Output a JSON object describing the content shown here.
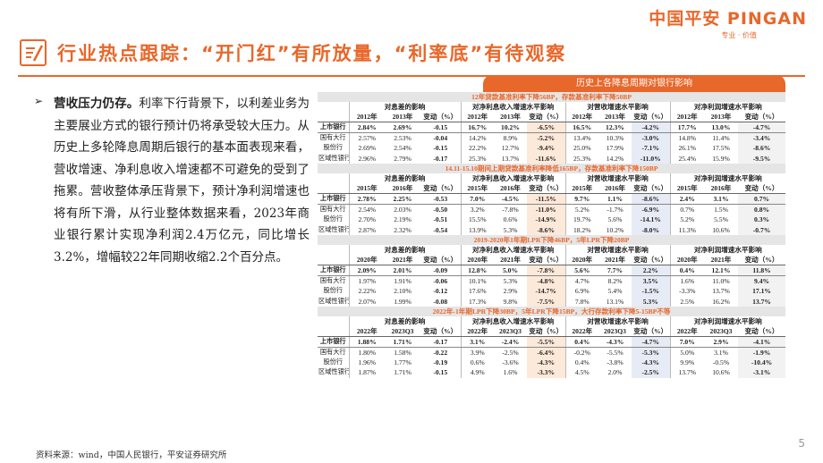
{
  "logo": {
    "main": "中国平安 PINGAN",
    "sub": "专业 · 价值"
  },
  "title": "行业热点跟踪：“开门红”有所放量，“利率底”有待观察",
  "body": {
    "bold_lead": "营收压力仍存。",
    "text": "利率下行背景下，以利差业务为主要展业方式的银行预计仍将承受较大压力。从历史上多轮降息周期后银行的基本面表现来看，营收增速、净利息收入增速都不可避免的受到了拖累。营收整体承压背景下，预计净利润增速也将有所下滑，从行业整体数据来看，2023年商业银行累计实现净利润2.4万亿元，同比增长3.2%，增幅较22年同期收缩2.2个百分点。"
  },
  "source": "资料来源：wind，中国人民银行，平安证券研究所",
  "page_number": "5",
  "table": {
    "title": "历史上各降息周期对银行影响",
    "group_headers": [
      "对息差的影响",
      "对净利息收入增速水平影响",
      "对营收增速水平影响",
      "对净利润增速水平影响"
    ],
    "sections": [
      {
        "period": "12年贷款基准利率下降56BP，存款基准利率下降50BP",
        "years": [
          "2012年",
          "2013年",
          "变动（%）",
          "2012年",
          "2013年",
          "变动（%）",
          "2012年",
          "2013年",
          "变动（%）",
          "2012年",
          "2013年",
          "变动（%）"
        ],
        "rows": [
          {
            "label": "上市银行",
            "cells": [
              "2.84%",
              "2.69%",
              "-0.15",
              "16.7%",
              "10.2%",
              "-6.5%",
              "16.5%",
              "12.3%",
              "-4.2%",
              "17.7%",
              "13.0%",
              "-4.7%"
            ]
          },
          {
            "label": "国有大行",
            "cells": [
              "2.57%",
              "2.53%",
              "-0.04",
              "14.2%",
              "8.9%",
              "-5.2%",
              "13.4%",
              "10.3%",
              "-3.0%",
              "14.8%",
              "11.4%",
              "-3.4%"
            ]
          },
          {
            "label": "股份行",
            "cells": [
              "2.69%",
              "2.54%",
              "-0.15",
              "22.2%",
              "12.7%",
              "-9.4%",
              "25.0%",
              "17.9%",
              "-7.1%",
              "26.1%",
              "17.5%",
              "-8.6%"
            ]
          },
          {
            "label": "区域性银行",
            "cells": [
              "2.96%",
              "2.79%",
              "-0.17",
              "25.3%",
              "13.7%",
              "-11.6%",
              "25.3%",
              "14.2%",
              "-11.0%",
              "25.4%",
              "15.9%",
              "-9.5%"
            ]
          }
        ]
      },
      {
        "period": "14.11-15.10期间上期贷款基准利率降低165BP，存款基准利率下降150BP",
        "years": [
          "2015年",
          "2016年",
          "变动（%）",
          "2015年",
          "2016年",
          "变动（%）",
          "2015年",
          "2016年",
          "变动（%）",
          "2015年",
          "2016年",
          "变动（%）"
        ],
        "rows": [
          {
            "label": "上市银行",
            "cells": [
              "2.78%",
              "2.25%",
              "-0.53",
              "7.0%",
              "-4.5%",
              "-11.5%",
              "9.7%",
              "1.1%",
              "-8.6%",
              "2.4%",
              "3.1%",
              "0.7%"
            ]
          },
          {
            "label": "国有大行",
            "cells": [
              "2.54%",
              "2.03%",
              "-0.50",
              "3.2%",
              "-7.8%",
              "-11.0%",
              "5.2%",
              "-1.7%",
              "-6.9%",
              "0.7%",
              "1.5%",
              "0.8%"
            ]
          },
          {
            "label": "股份行",
            "cells": [
              "2.70%",
              "2.19%",
              "-0.51",
              "15.5%",
              "0.6%",
              "-14.9%",
              "19.7%",
              "5.6%",
              "-14.1%",
              "5.2%",
              "5.5%",
              "0.3%"
            ]
          },
          {
            "label": "区域性银行",
            "cells": [
              "2.87%",
              "2.32%",
              "-0.54",
              "13.9%",
              "5.3%",
              "-8.6%",
              "18.2%",
              "10.2%",
              "-8.0%",
              "11.3%",
              "10.6%",
              "-0.7%"
            ]
          }
        ]
      },
      {
        "period": "2019-2020年1年期LPR下降46BP，5年LPR下降20BP",
        "years": [
          "2020年",
          "2021年",
          "变动（%）",
          "2020年",
          "2021年",
          "变动（%）",
          "2020年",
          "2021年",
          "变动（%）",
          "2020年",
          "2021年",
          "变动（%）"
        ],
        "rows": [
          {
            "label": "上市银行",
            "cells": [
              "2.09%",
              "2.01%",
              "-0.09",
              "12.8%",
              "5.0%",
              "-7.8%",
              "5.6%",
              "7.7%",
              "2.2%",
              "0.4%",
              "12.1%",
              "11.8%"
            ]
          },
          {
            "label": "国有大行",
            "cells": [
              "1.97%",
              "1.91%",
              "-0.06",
              "10.1%",
              "5.3%",
              "-4.8%",
              "4.7%",
              "8.2%",
              "3.5%",
              "1.6%",
              "11.0%",
              "9.4%"
            ]
          },
          {
            "label": "股份行",
            "cells": [
              "2.22%",
              "2.10%",
              "-0.12",
              "17.6%",
              "2.9%",
              "-14.7%",
              "6.9%",
              "5.4%",
              "-1.5%",
              "-3.3%",
              "13.7%",
              "17.1%"
            ]
          },
          {
            "label": "区域性银行",
            "cells": [
              "2.07%",
              "1.99%",
              "-0.08",
              "17.3%",
              "9.8%",
              "-7.5%",
              "7.8%",
              "13.1%",
              "5.3%",
              "2.5%",
              "16.2%",
              "13.7%"
            ]
          }
        ]
      },
      {
        "period": "2022年-1年期LPR下降30BP，5年LPR下降15BP，大行存款利率下降5-15BP不等",
        "years": [
          "2022年",
          "2023Q3",
          "变动（%）",
          "2022年",
          "2023Q3",
          "变动（%）",
          "2022年",
          "2023Q3",
          "变动（%）",
          "2022年",
          "2023Q3",
          "变动（%）"
        ],
        "rows": [
          {
            "label": "上市银行",
            "cells": [
              "1.88%",
              "1.71%",
              "-0.17",
              "3.1%",
              "-2.4%",
              "-5.5%",
              "0.4%",
              "-4.3%",
              "-4.7%",
              "7.0%",
              "2.9%",
              "-4.1%"
            ]
          },
          {
            "label": "国有大行",
            "cells": [
              "1.80%",
              "1.58%",
              "-0.22",
              "3.9%",
              "-2.5%",
              "-6.4%",
              "-0.2%",
              "-5.5%",
              "-5.3%",
              "5.0%",
              "3.1%",
              "-1.9%"
            ]
          },
          {
            "label": "股份行",
            "cells": [
              "1.96%",
              "1.77%",
              "-0.19",
              "0.6%",
              "-3.6%",
              "-4.3%",
              "0.4%",
              "-3.8%",
              "-4.3%",
              "9.9%",
              "-0.5%",
              "-10.4%"
            ]
          },
          {
            "label": "区域性银行",
            "cells": [
              "1.87%",
              "1.71%",
              "-0.15",
              "4.9%",
              "1.6%",
              "-3.3%",
              "4.5%",
              "2.0%",
              "-2.5%",
              "13.7%",
              "10.6%",
              "-3.1%"
            ]
          }
        ]
      }
    ]
  },
  "colors": {
    "accent": "#e8672a",
    "band": "#e5e5e5"
  }
}
